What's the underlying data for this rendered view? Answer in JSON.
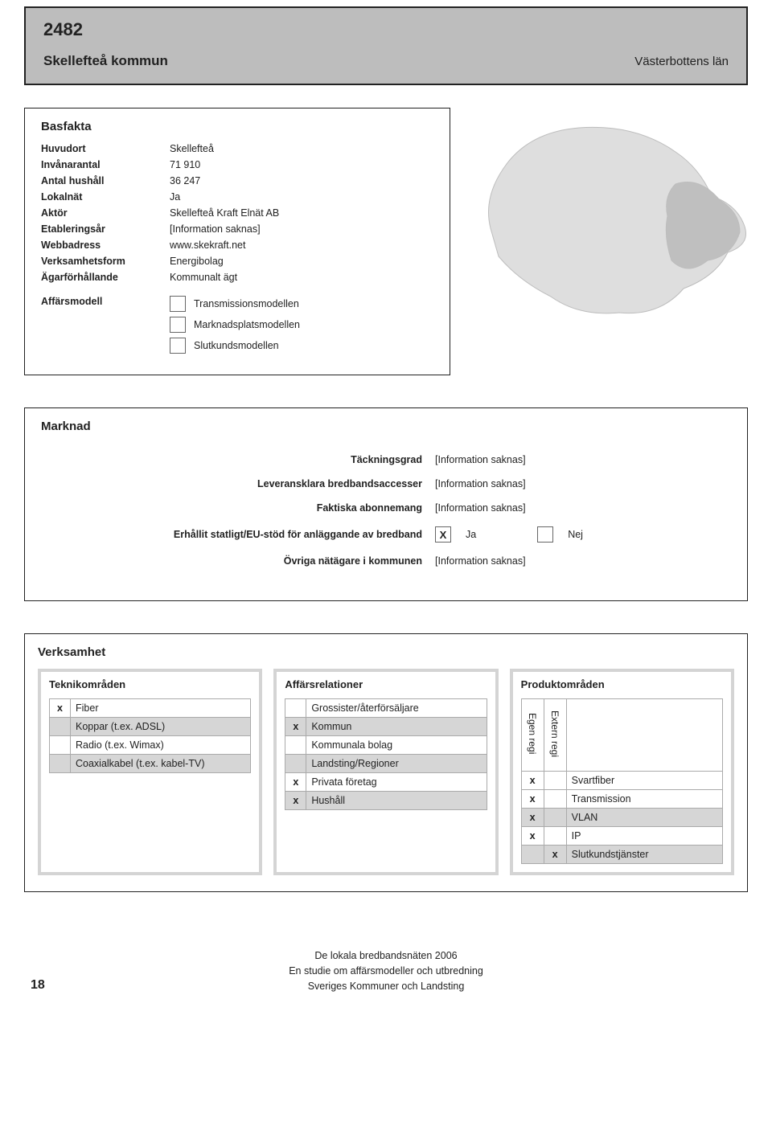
{
  "header": {
    "code": "2482",
    "name": "Skellefteå kommun",
    "region": "Västerbottens län"
  },
  "basfakta": {
    "title": "Basfakta",
    "rows": [
      {
        "key": "Huvudort",
        "val": "Skellefteå"
      },
      {
        "key": "Invånarantal",
        "val": "71 910"
      },
      {
        "key": "Antal hushåll",
        "val": "36 247"
      },
      {
        "key": "Lokalnät",
        "val": "Ja"
      },
      {
        "key": "Aktör",
        "val": "Skellefteå Kraft Elnät AB"
      },
      {
        "key": "Etableringsår",
        "val": "[Information saknas]"
      },
      {
        "key": "Webbadress",
        "val": "www.skekraft.net"
      },
      {
        "key": "Verksamhetsform",
        "val": "Energibolag"
      },
      {
        "key": "Ägarförhållande",
        "val": "Kommunalt ägt"
      }
    ],
    "affarsmodell": {
      "label": "Affärsmodell",
      "items": [
        {
          "label": "Transmissionsmodellen",
          "checked": false
        },
        {
          "label": "Marknadsplatsmodellen",
          "checked": false
        },
        {
          "label": "Slutkundsmodellen",
          "checked": false
        }
      ]
    }
  },
  "map": {
    "region_fill": "#dedede",
    "highlight_fill": "#bfbfbf",
    "stroke": "#bdbdbd"
  },
  "marknad": {
    "title": "Marknad",
    "rows": [
      {
        "label": "Täckningsgrad",
        "value": "[Information saknas]"
      },
      {
        "label": "Leveransklara bredbandsaccesser",
        "value": "[Information saknas]"
      },
      {
        "label": "Faktiska abonnemang",
        "value": "[Information saknas]"
      }
    ],
    "stod": {
      "label": "Erhållit statligt/EU-stöd för anläggande av bredband",
      "ja_checked": true,
      "ja_label": "Ja",
      "nej_checked": false,
      "nej_label": "Nej"
    },
    "ovriga": {
      "label": "Övriga nätägare i kommunen",
      "value": "[Information saknas]"
    }
  },
  "verksamhet": {
    "title": "Verksamhet",
    "teknik": {
      "title": "Teknikområden",
      "rows": [
        {
          "x": "x",
          "label": "Fiber",
          "shaded": false
        },
        {
          "x": "",
          "label": "Koppar (t.ex. ADSL)",
          "shaded": true
        },
        {
          "x": "",
          "label": "Radio (t.ex. Wimax)",
          "shaded": false
        },
        {
          "x": "",
          "label": "Coaxialkabel (t.ex. kabel-TV)",
          "shaded": true
        }
      ]
    },
    "affrel": {
      "title": "Affärsrelationer",
      "rows": [
        {
          "x": "",
          "label": "Grossister/återförsäljare",
          "shaded": false
        },
        {
          "x": "x",
          "label": "Kommun",
          "shaded": true
        },
        {
          "x": "",
          "label": "Kommunala bolag",
          "shaded": false
        },
        {
          "x": "",
          "label": "Landsting/Regioner",
          "shaded": true
        },
        {
          "x": "x",
          "label": "Privata företag",
          "shaded": false
        },
        {
          "x": "x",
          "label": "Hushåll",
          "shaded": true
        }
      ]
    },
    "produkt": {
      "title": "Produktområden",
      "col1": "Egen regi",
      "col2": "Extern regi",
      "rows": [
        {
          "egen": "x",
          "ext": "",
          "label": "Svartfiber",
          "shaded": false
        },
        {
          "egen": "x",
          "ext": "",
          "label": "Transmission",
          "shaded": false
        },
        {
          "egen": "x",
          "ext": "",
          "label": "VLAN",
          "shaded": true
        },
        {
          "egen": "x",
          "ext": "",
          "label": "IP",
          "shaded": false
        },
        {
          "egen": "",
          "ext": "x",
          "label": "Slutkundstjänster",
          "shaded": true
        }
      ]
    }
  },
  "footer": {
    "line1": "De lokala bredbandsnäten 2006",
    "line2": "En studie om affärsmodeller och utbredning",
    "line3": "Sveriges Kommuner och Landsting",
    "page": "18"
  }
}
